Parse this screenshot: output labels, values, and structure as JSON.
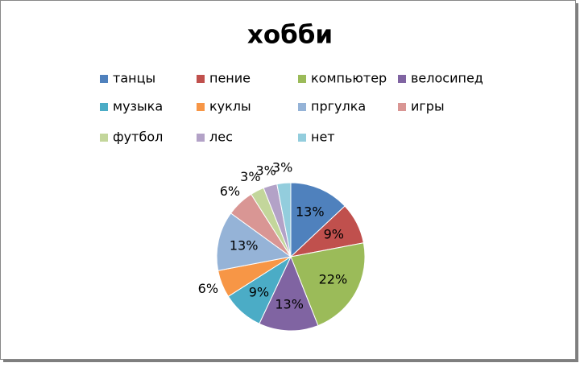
{
  "chart_data": {
    "type": "pie",
    "title": "хобби",
    "categories": [
      "танцы",
      "пение",
      "компьютер",
      "велосипед",
      "музыка",
      "куклы",
      "пргулка",
      "игры",
      "футбол",
      "лес",
      "нет"
    ],
    "values": [
      13,
      9,
      22,
      13,
      9,
      6,
      13,
      6,
      3,
      3,
      3
    ],
    "value_labels": [
      "13%",
      "9%",
      "22%",
      "13%",
      "9%",
      "6%",
      "13%",
      "6%",
      "3%",
      "3%",
      "3%"
    ],
    "colors": [
      "#4F81BD",
      "#C0504D",
      "#9BBB59",
      "#8064A2",
      "#4BACC6",
      "#F79646",
      "#95B3D7",
      "#D99694",
      "#C3D69B",
      "#B3A2C7",
      "#93CDDD"
    ],
    "legend": "top"
  }
}
